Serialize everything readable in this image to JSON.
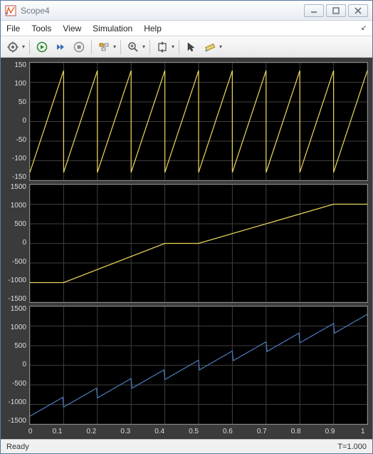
{
  "window": {
    "title": "Scope4"
  },
  "menu": {
    "file": "File",
    "tools": "Tools",
    "view": "View",
    "simulation": "Simulation",
    "help": "Help"
  },
  "status": {
    "left": "Ready",
    "right": "T=1.000"
  },
  "colors": {
    "grid": "#3e3e3e",
    "bg": "#000000",
    "axis_text": "#dddddd",
    "series_yellow": "#e6d55a",
    "series_blue": "#4a7ab8"
  },
  "x": {
    "lim": [
      0,
      1
    ],
    "ticks": [
      0,
      0.1,
      0.2,
      0.3,
      0.4,
      0.5,
      0.6,
      0.7,
      0.8,
      0.9,
      1
    ]
  },
  "subplots": [
    {
      "ylim": [
        -150,
        150
      ],
      "yticks": [
        -150,
        -100,
        -50,
        0,
        50,
        100,
        150
      ],
      "color_key": "series_yellow",
      "stroke_width": 1.2,
      "series": {
        "type": "sawtooth",
        "period": 0.1,
        "lo": -130,
        "hi": 130
      }
    },
    {
      "ylim": [
        -1500,
        1500
      ],
      "yticks": [
        -1500,
        -1000,
        -500,
        0,
        500,
        1000,
        1500
      ],
      "color_key": "series_yellow",
      "stroke_width": 1.2,
      "series": {
        "type": "polyline",
        "points": [
          [
            0,
            -1000
          ],
          [
            0.1,
            -1000
          ],
          [
            0.4,
            0
          ],
          [
            0.5,
            0
          ],
          [
            0.9,
            1000
          ],
          [
            1,
            1000
          ]
        ]
      }
    },
    {
      "ylim": [
        -1500,
        1500
      ],
      "yticks": [
        -1500,
        -1000,
        -500,
        0,
        500,
        1000,
        1500
      ],
      "color_key": "series_blue",
      "stroke_width": 1.2,
      "series": {
        "type": "ramp_saw_sum",
        "ramp_start": -1170,
        "ramp_end": 1170,
        "saw_period": 0.1,
        "saw_amp": 130
      }
    }
  ]
}
